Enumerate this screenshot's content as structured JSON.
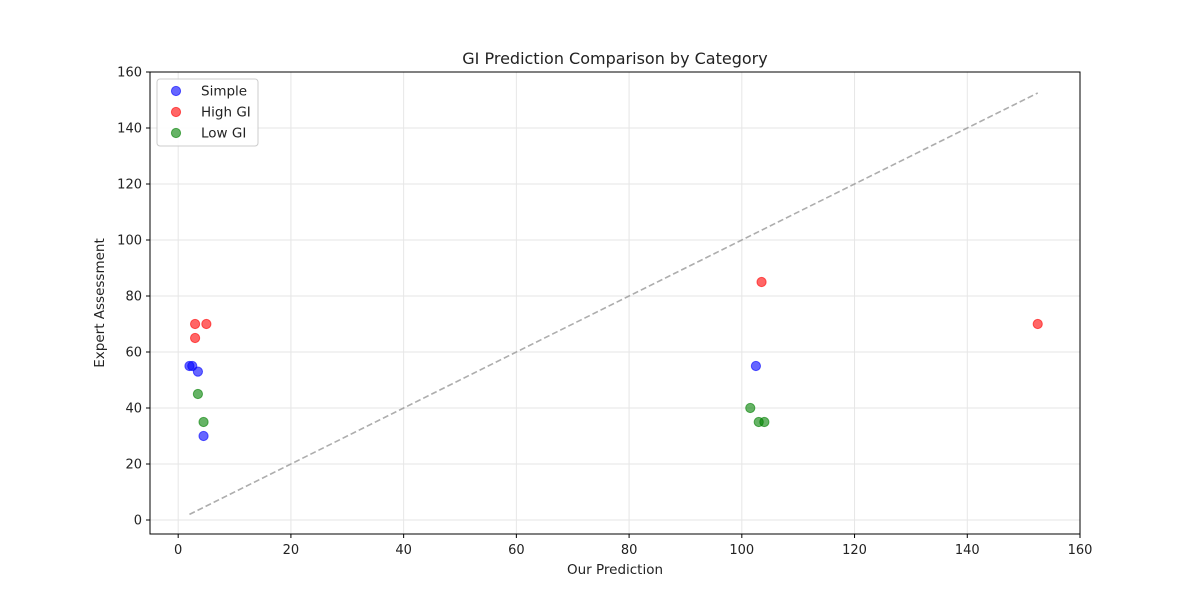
{
  "chart_data": {
    "type": "scatter",
    "title": "GI Prediction Comparison by Category",
    "xlabel": "Our Prediction",
    "ylabel": "Expert Assessment",
    "xlim": [
      -5,
      160
    ],
    "ylim": [
      -5,
      160
    ],
    "xticks": [
      0,
      20,
      40,
      60,
      80,
      100,
      120,
      140,
      160
    ],
    "yticks": [
      0,
      20,
      40,
      60,
      80,
      100,
      120,
      140,
      160
    ],
    "grid": true,
    "legend_position": "top-left",
    "reference_line": {
      "style": "dashed",
      "color": "#999999",
      "from": [
        2,
        2
      ],
      "to": [
        152.5,
        152.5
      ]
    },
    "series": [
      {
        "name": "Simple",
        "color": "#0000ff",
        "points": [
          {
            "x": 2,
            "y": 55
          },
          {
            "x": 2.5,
            "y": 55
          },
          {
            "x": 3.5,
            "y": 53
          },
          {
            "x": 4.5,
            "y": 30
          },
          {
            "x": 102.5,
            "y": 55
          }
        ]
      },
      {
        "name": "High GI",
        "color": "#ff0000",
        "points": [
          {
            "x": 3,
            "y": 70
          },
          {
            "x": 5,
            "y": 70
          },
          {
            "x": 3,
            "y": 65
          },
          {
            "x": 103.5,
            "y": 85
          },
          {
            "x": 152.5,
            "y": 70
          }
        ]
      },
      {
        "name": "Low GI",
        "color": "#008000",
        "points": [
          {
            "x": 3.5,
            "y": 45
          },
          {
            "x": 4.5,
            "y": 35
          },
          {
            "x": 101.5,
            "y": 40
          },
          {
            "x": 103,
            "y": 35
          },
          {
            "x": 104,
            "y": 35
          }
        ]
      }
    ]
  }
}
